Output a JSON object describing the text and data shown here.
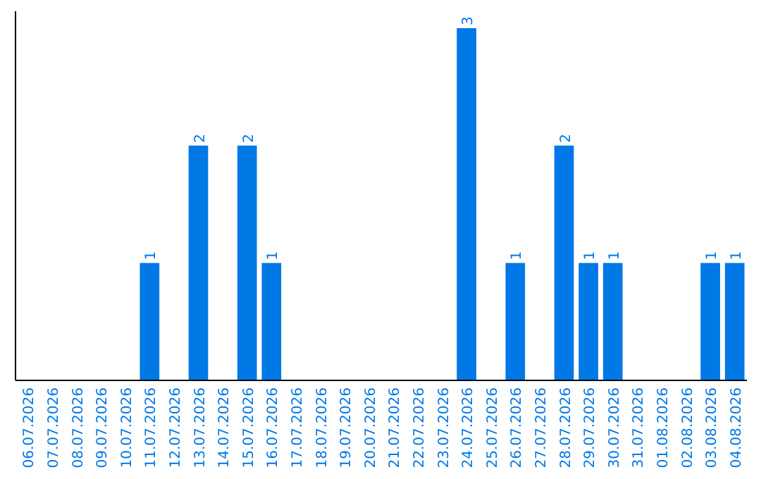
{
  "chart_data": {
    "type": "bar",
    "categories": [
      "06.07.2026",
      "07.07.2026",
      "08.07.2026",
      "09.07.2026",
      "10.07.2026",
      "11.07.2026",
      "12.07.2026",
      "13.07.2026",
      "14.07.2026",
      "15.07.2026",
      "16.07.2026",
      "17.07.2026",
      "18.07.2026",
      "19.07.2026",
      "20.07.2026",
      "21.07.2026",
      "22.07.2026",
      "23.07.2026",
      "24.07.2026",
      "25.07.2026",
      "26.07.2026",
      "27.07.2026",
      "28.07.2026",
      "29.07.2026",
      "30.07.2026",
      "31.07.2026",
      "01.08.2026",
      "02.08.2026",
      "03.08.2026",
      "04.08.2026"
    ],
    "values": [
      0,
      0,
      0,
      0,
      0,
      1,
      0,
      2,
      0,
      2,
      1,
      0,
      0,
      0,
      0,
      0,
      0,
      0,
      3,
      0,
      1,
      0,
      2,
      1,
      1,
      0,
      0,
      0,
      1,
      1
    ],
    "value_labels": [
      null,
      null,
      null,
      null,
      null,
      "1",
      null,
      "2",
      null,
      "2",
      "1",
      null,
      null,
      null,
      null,
      null,
      null,
      null,
      "3",
      null,
      "1",
      null,
      "2",
      "1",
      "1",
      null,
      null,
      null,
      "1",
      "1"
    ],
    "color": "#0078e6",
    "ylim": [
      0,
      3
    ],
    "tick_labels": "x"
  }
}
